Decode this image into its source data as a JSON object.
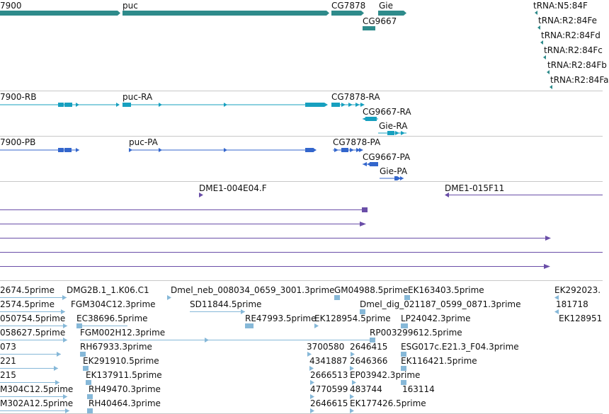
{
  "colors": {
    "gene": "#2e8b8b",
    "transcript": "#17a0bf",
    "protein": "#3366cc",
    "clone": "#6a4ea8",
    "est": "#86b8d8",
    "separator": "#c8c8c8"
  },
  "gene_track": {
    "labels": [
      {
        "text": "7900"
      },
      {
        "text": "puc"
      },
      {
        "text": "CG7878"
      },
      {
        "text": "Gie"
      },
      {
        "text": "CG9667"
      },
      {
        "text": "tRNA:N5:84F"
      },
      {
        "text": "tRNA:R2:84Fe"
      },
      {
        "text": "tRNA:R2:84Fd"
      },
      {
        "text": "tRNA:R2:84Fc"
      },
      {
        "text": "tRNA:R2:84Fb"
      },
      {
        "text": "tRNA:R2:84Fa"
      }
    ]
  },
  "transcript_track": {
    "labels": [
      {
        "text": "7900-RB"
      },
      {
        "text": "puc-RA"
      },
      {
        "text": "CG7878-RA"
      },
      {
        "text": "CG9667-RA"
      },
      {
        "text": "Gie-RA"
      }
    ]
  },
  "protein_track": {
    "labels": [
      {
        "text": "7900-PB"
      },
      {
        "text": "puc-PA"
      },
      {
        "text": "CG7878-PA"
      },
      {
        "text": "CG9667-PA"
      },
      {
        "text": "Gie-PA"
      }
    ]
  },
  "clone_track": {
    "labels": [
      {
        "text": "DME1-004E04.F"
      },
      {
        "text": "DME1-015F11"
      }
    ]
  },
  "est_track": {
    "labels": [
      {
        "text": "2674.5prime"
      },
      {
        "text": "DMG2B.1_1.K06.C1"
      },
      {
        "text": "Dmel_neb_008034_0659_3001.3prime"
      },
      {
        "text": "GM04988.5prime"
      },
      {
        "text": "EK163403.5prime"
      },
      {
        "text": "EK292023."
      },
      {
        "text": "2574.5prime"
      },
      {
        "text": "FGM304C12.3prime"
      },
      {
        "text": "SD11844.5prime"
      },
      {
        "text": "Dmel_dig_021187_0599_0871.3prime"
      },
      {
        "text": "181718"
      },
      {
        "text": "050754.5prime"
      },
      {
        "text": "EC38696.5prime"
      },
      {
        "text": "RE47993.5prime"
      },
      {
        "text": "EK128954.5prime"
      },
      {
        "text": "LP24042.3prime"
      },
      {
        "text": "EK128951"
      },
      {
        "text": "058627.5prime"
      },
      {
        "text": "FGM002H12.3prime"
      },
      {
        "text": "RP003299612.5prime"
      },
      {
        "text": "073"
      },
      {
        "text": "RH67933.3prime"
      },
      {
        "text": "3700580"
      },
      {
        "text": "2646415"
      },
      {
        "text": "ESG017c.E21.3_F04.3prime"
      },
      {
        "text": "221"
      },
      {
        "text": "EK291910.5prime"
      },
      {
        "text": "4341887"
      },
      {
        "text": "2646366"
      },
      {
        "text": "EK116421.5prime"
      },
      {
        "text": "215"
      },
      {
        "text": "EK137911.5prime"
      },
      {
        "text": "2666513"
      },
      {
        "text": "EP03942.3prime"
      },
      {
        "text": "M304C12.5prime"
      },
      {
        "text": "RH49470.3prime"
      },
      {
        "text": "4770599"
      },
      {
        "text": "483744"
      },
      {
        "text": "163114"
      },
      {
        "text": "M302A12.5prime"
      },
      {
        "text": "RH40464.3prime"
      },
      {
        "text": "2646615"
      },
      {
        "text": "EK177426.5prime"
      }
    ]
  }
}
